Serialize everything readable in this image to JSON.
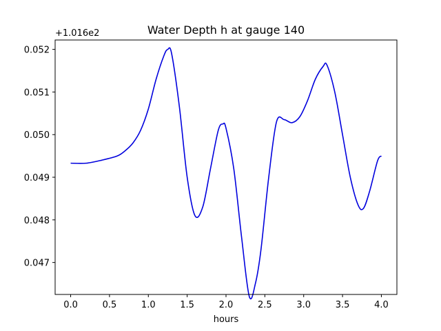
{
  "chart_data": {
    "type": "line",
    "title": "Water Depth h at gauge 140",
    "xlabel": "hours",
    "ylabel": "",
    "y_offset_label": "+1.016e2",
    "xlim": [
      -0.2,
      4.2
    ],
    "ylim": [
      0.04625,
      0.05222
    ],
    "xticks": [
      0.0,
      0.5,
      1.0,
      1.5,
      2.0,
      2.5,
      3.0,
      3.5,
      4.0
    ],
    "xtick_labels": [
      "0.0",
      "0.5",
      "1.0",
      "1.5",
      "2.0",
      "2.5",
      "3.0",
      "3.5",
      "4.0"
    ],
    "yticks": [
      0.047,
      0.048,
      0.049,
      0.05,
      0.051,
      0.052
    ],
    "ytick_labels": [
      "0.047",
      "0.048",
      "0.049",
      "0.050",
      "0.051",
      "0.052"
    ],
    "grid": false,
    "legend": "none",
    "series": [
      {
        "color": "#0000dd",
        "x": [
          0.0,
          0.2,
          0.4,
          0.6,
          0.7,
          0.8,
          0.9,
          1.0,
          1.1,
          1.2,
          1.25,
          1.3,
          1.4,
          1.5,
          1.6,
          1.7,
          1.8,
          1.9,
          1.96,
          2.0,
          2.1,
          2.2,
          2.3,
          2.38,
          2.45,
          2.55,
          2.65,
          2.75,
          2.85,
          2.95,
          3.05,
          3.15,
          3.25,
          3.3,
          3.4,
          3.5,
          3.6,
          3.7,
          3.77,
          3.85,
          3.95,
          4.0
        ],
        "y": [
          0.04933,
          0.04933,
          0.0494,
          0.0495,
          0.04962,
          0.0498,
          0.0501,
          0.0506,
          0.0513,
          0.05185,
          0.052,
          0.0519,
          0.05065,
          0.049,
          0.0481,
          0.0483,
          0.0492,
          0.0501,
          0.05025,
          0.05015,
          0.0492,
          0.0476,
          0.0462,
          0.04652,
          0.0473,
          0.049,
          0.0503,
          0.05035,
          0.05028,
          0.05042,
          0.0508,
          0.0513,
          0.0516,
          0.05163,
          0.051,
          0.05,
          0.049,
          0.04835,
          0.04827,
          0.04868,
          0.04938,
          0.0495
        ]
      }
    ]
  }
}
